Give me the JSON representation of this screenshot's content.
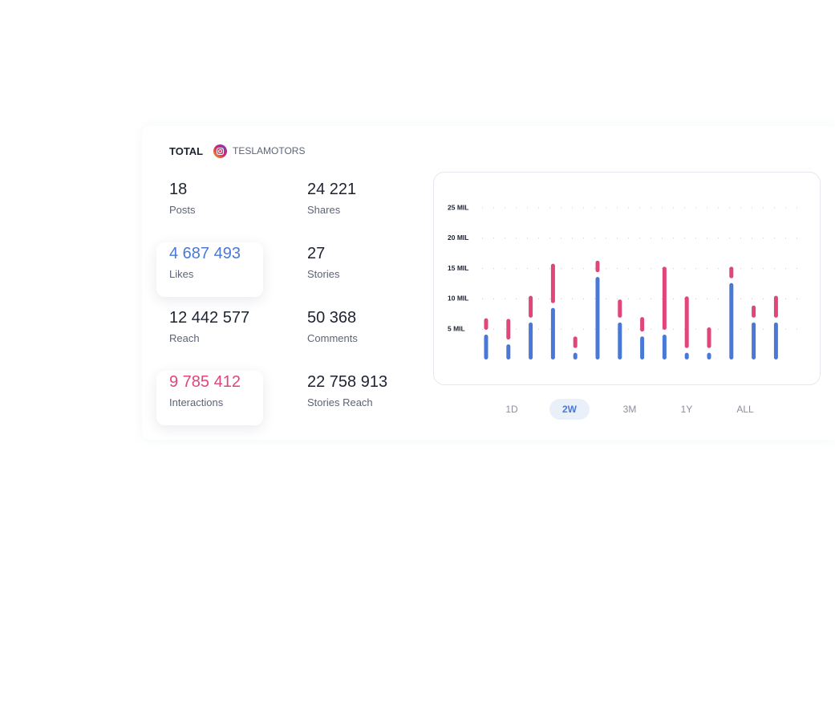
{
  "header": {
    "title": "TOTAL",
    "account": "TESLAMOTORS"
  },
  "stats": [
    {
      "value": "18",
      "label": "Posts"
    },
    {
      "value": "24 221",
      "label": "Shares"
    },
    {
      "value": "4 687 493",
      "label": "Likes",
      "color": "#4a78d6"
    },
    {
      "value": "27",
      "label": "Stories"
    },
    {
      "value": "12 442 577",
      "label": "Reach"
    },
    {
      "value": "50 368",
      "label": "Comments"
    },
    {
      "value": "9 785 412",
      "label": "Interactions",
      "color": "#e0457b"
    },
    {
      "value": "22 758 913",
      "label": "Stories Reach"
    }
  ],
  "chart_data": {
    "type": "bar",
    "stacked": true,
    "grid": true,
    "ylim": [
      0,
      25
    ],
    "yticks": [
      {
        "value": 5,
        "label": "5 MIL"
      },
      {
        "value": 10,
        "label": "10 MIL"
      },
      {
        "value": 15,
        "label": "15 MIL"
      },
      {
        "value": 20,
        "label": "20 MIL"
      },
      {
        "value": 25,
        "label": "25 MIL"
      }
    ],
    "series": [
      {
        "color": "#4a78d6",
        "values": [
          4.1,
          2.5,
          6.1,
          8.5,
          1.1,
          13.6,
          6.1,
          3.8,
          4.1,
          1.1,
          1.1,
          12.6,
          6.1,
          6.1
        ]
      },
      {
        "color": "#e0457b",
        "values": [
          1.9,
          3.4,
          3.6,
          6.5,
          1.9,
          1.9,
          3.0,
          2.4,
          10.4,
          8.5,
          3.4,
          1.9,
          2.0,
          3.6
        ]
      }
    ]
  },
  "range_buttons": [
    "1D",
    "2W",
    "3M",
    "1Y",
    "ALL"
  ],
  "active_range": "2W"
}
